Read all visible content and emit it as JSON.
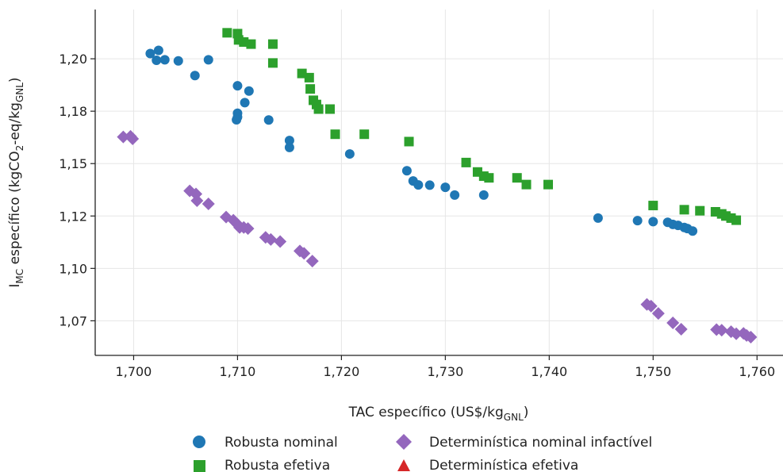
{
  "chart_data": {
    "type": "scatter",
    "title": "",
    "xlabel": "TAC específico (US$/kg",
    "xlabel_sub": "GNL",
    "xlabel_suffix": ")",
    "ylabel_prefix": "I",
    "ylabel_sub1": "MC",
    "ylabel_mid": " específico (kgCO",
    "ylabel_sub2": "2",
    "ylabel_mid2": "-eq/kg",
    "ylabel_sub3": "GNL",
    "ylabel_suffix": ")",
    "xlim": [
      1.6963,
      1.7625
    ],
    "ylim": [
      1.0585,
      1.2235
    ],
    "x_ticks": [
      1.7,
      1.71,
      1.72,
      1.73,
      1.74,
      1.75,
      1.76
    ],
    "x_tick_labels": [
      "1,700",
      "1,710",
      "1,720",
      "1,730",
      "1,740",
      "1,750",
      "1,760"
    ],
    "y_ticks": [
      1.075,
      1.1,
      1.125,
      1.15,
      1.175,
      1.2
    ],
    "y_tick_labels": [
      "1,07",
      "1,10",
      "1,12",
      "1,15",
      "1,18",
      "1,20"
    ],
    "grid": true,
    "legend_position": "bottom",
    "series": [
      {
        "name": "Robusta nominal",
        "marker": "circle",
        "color": "#1f77b4",
        "points": [
          [
            1.7016,
            1.2025
          ],
          [
            1.7022,
            1.1993
          ],
          [
            1.7024,
            1.204
          ],
          [
            1.703,
            1.1995
          ],
          [
            1.7043,
            1.199
          ],
          [
            1.7059,
            1.192
          ],
          [
            1.7072,
            1.1995
          ],
          [
            1.71,
            1.1871
          ],
          [
            1.7111,
            1.1846
          ],
          [
            1.7107,
            1.1791
          ],
          [
            1.71,
            1.174
          ],
          [
            1.71,
            1.1722
          ],
          [
            1.7099,
            1.1709
          ],
          [
            1.713,
            1.1708
          ],
          [
            1.715,
            1.161
          ],
          [
            1.715,
            1.1577
          ],
          [
            1.7208,
            1.1546
          ],
          [
            1.7263,
            1.1466
          ],
          [
            1.7269,
            1.1417
          ],
          [
            1.7274,
            1.1398
          ],
          [
            1.7285,
            1.1397
          ],
          [
            1.73,
            1.1387
          ],
          [
            1.7309,
            1.135
          ],
          [
            1.7337,
            1.135
          ],
          [
            1.7447,
            1.124
          ],
          [
            1.7485,
            1.1228
          ],
          [
            1.75,
            1.1223
          ],
          [
            1.7514,
            1.122
          ],
          [
            1.7519,
            1.121
          ],
          [
            1.7524,
            1.1205
          ],
          [
            1.753,
            1.1195
          ],
          [
            1.7533,
            1.119
          ],
          [
            1.7538,
            1.1178
          ]
        ]
      },
      {
        "name": "Robusta efetiva",
        "marker": "square",
        "color": "#2ca02c",
        "points": [
          [
            1.709,
            1.2124
          ],
          [
            1.71,
            1.212
          ],
          [
            1.7101,
            1.209
          ],
          [
            1.7106,
            1.208
          ],
          [
            1.7113,
            1.207
          ],
          [
            1.7134,
            1.207
          ],
          [
            1.7134,
            1.198
          ],
          [
            1.7162,
            1.193
          ],
          [
            1.7169,
            1.191
          ],
          [
            1.717,
            1.1856
          ],
          [
            1.7173,
            1.1802
          ],
          [
            1.7176,
            1.1782
          ],
          [
            1.7178,
            1.176
          ],
          [
            1.7189,
            1.176
          ],
          [
            1.7194,
            1.164
          ],
          [
            1.7222,
            1.164
          ],
          [
            1.7265,
            1.1605
          ],
          [
            1.732,
            1.1505
          ],
          [
            1.7331,
            1.146
          ],
          [
            1.7337,
            1.144
          ],
          [
            1.7342,
            1.1432
          ],
          [
            1.7369,
            1.1432
          ],
          [
            1.7378,
            1.14
          ],
          [
            1.7399,
            1.14
          ],
          [
            1.75,
            1.13
          ],
          [
            1.753,
            1.128
          ],
          [
            1.7545,
            1.1275
          ],
          [
            1.756,
            1.127
          ],
          [
            1.7566,
            1.126
          ],
          [
            1.757,
            1.125
          ],
          [
            1.7575,
            1.124
          ],
          [
            1.758,
            1.123
          ]
        ]
      },
      {
        "name": "Determinística nominal infactível",
        "marker": "diamond",
        "color": "#9467bd",
        "points": [
          [
            1.699,
            1.1627
          ],
          [
            1.6997,
            1.163
          ],
          [
            1.6999,
            1.1618
          ],
          [
            1.7054,
            1.137
          ],
          [
            1.706,
            1.1355
          ],
          [
            1.7061,
            1.1323
          ],
          [
            1.7072,
            1.1308
          ],
          [
            1.7089,
            1.1245
          ],
          [
            1.7096,
            1.123
          ],
          [
            1.71,
            1.121
          ],
          [
            1.7102,
            1.1195
          ],
          [
            1.7106,
            1.1195
          ],
          [
            1.711,
            1.119
          ],
          [
            1.7127,
            1.1148
          ],
          [
            1.7132,
            1.1138
          ],
          [
            1.7141,
            1.1128
          ],
          [
            1.716,
            1.1083
          ],
          [
            1.7164,
            1.1072
          ],
          [
            1.7172,
            1.1035
          ],
          [
            1.7494,
            1.0828
          ],
          [
            1.7498,
            1.082
          ],
          [
            1.7505,
            1.0785
          ],
          [
            1.7519,
            1.074
          ],
          [
            1.7527,
            1.071
          ],
          [
            1.7561,
            1.0708
          ],
          [
            1.7566,
            1.0705
          ],
          [
            1.7575,
            1.0698
          ],
          [
            1.758,
            1.0688
          ],
          [
            1.7587,
            1.069
          ],
          [
            1.759,
            1.068
          ],
          [
            1.7594,
            1.0672
          ]
        ]
      },
      {
        "name": "Determinística efetiva",
        "marker": "triangle",
        "color": "#d62728",
        "points": []
      }
    ]
  }
}
